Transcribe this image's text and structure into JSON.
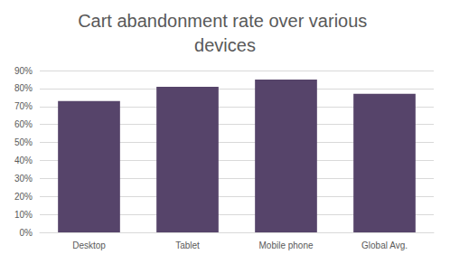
{
  "chart_data": {
    "type": "bar",
    "title": "Cart abandonment rate over various devices",
    "categories": [
      "Desktop",
      "Tablet",
      "Mobile phone",
      "Global Avg."
    ],
    "values": [
      73,
      81,
      85,
      77
    ],
    "color": "#56446a",
    "ylim": [
      0,
      90
    ],
    "yticks": [
      {
        "value": 0,
        "label": "0%"
      },
      {
        "value": 10,
        "label": "10%"
      },
      {
        "value": 20,
        "label": "20%"
      },
      {
        "value": 30,
        "label": "30%"
      },
      {
        "value": 40,
        "label": "40%"
      },
      {
        "value": 50,
        "label": "50%"
      },
      {
        "value": 60,
        "label": "60%"
      },
      {
        "value": 70,
        "label": "70%"
      },
      {
        "value": 80,
        "label": "80%"
      },
      {
        "value": 90,
        "label": "90%"
      }
    ],
    "grid": true
  }
}
